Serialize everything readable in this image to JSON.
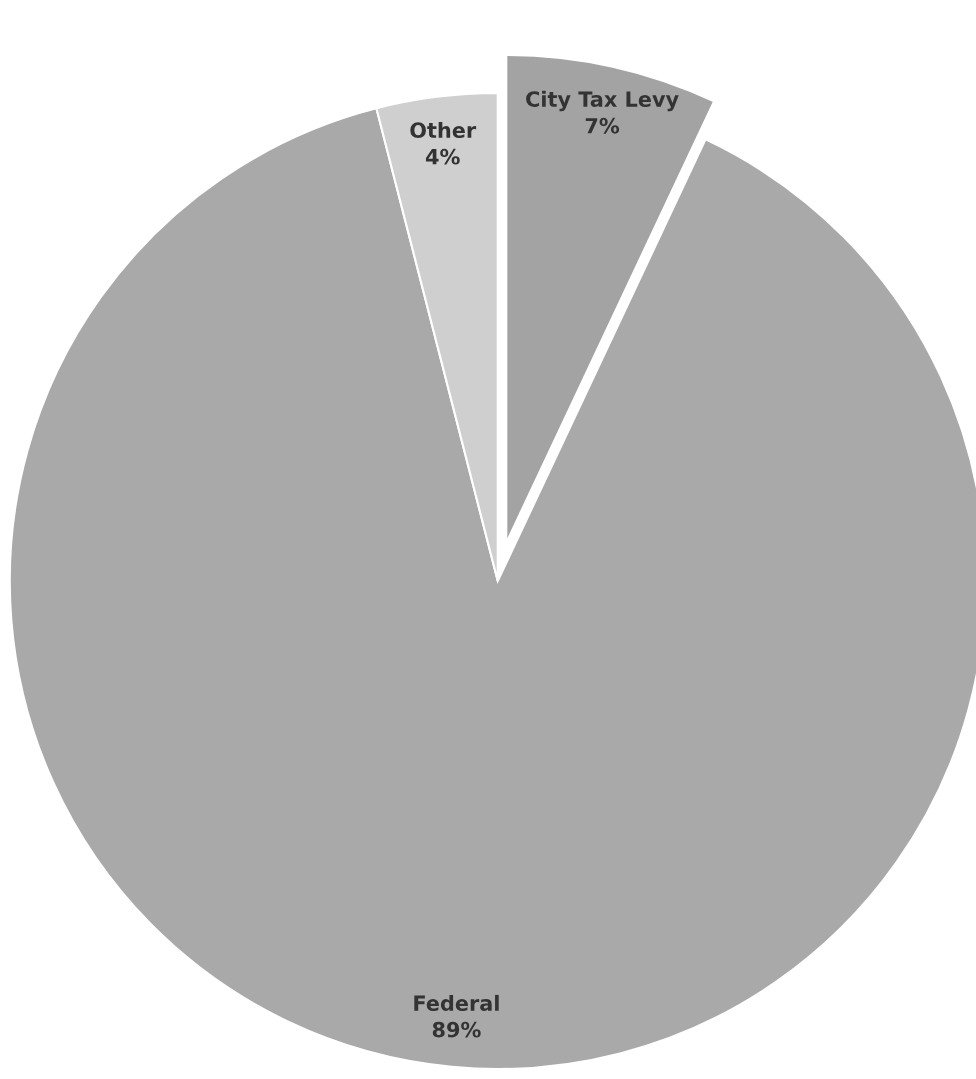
{
  "chart_data": {
    "type": "pie",
    "categories": [
      "City Tax Levy",
      "Federal",
      "Other"
    ],
    "values": [
      7,
      89,
      4
    ],
    "colors": [
      "#a3a3a3",
      "#a9a9a9",
      "#cfcfcf"
    ],
    "value_labels": [
      "7%",
      "89%",
      "4%"
    ]
  }
}
